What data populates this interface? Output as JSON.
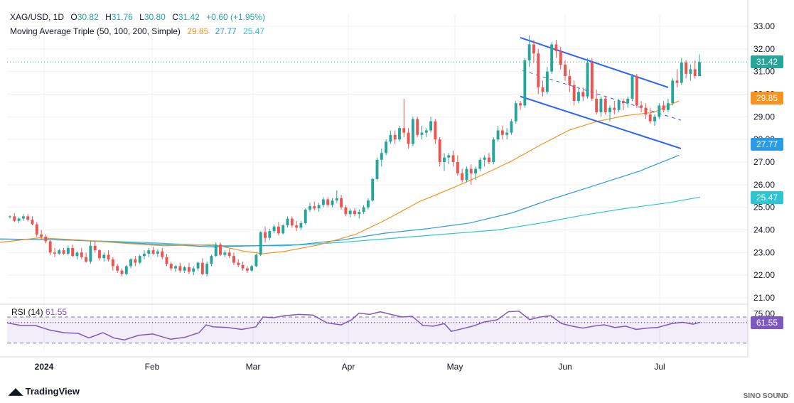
{
  "header": {
    "symbol": "XAG/USD, 1D",
    "ohlc": {
      "o_label": "O",
      "o": "30.82",
      "h_label": "H",
      "h": "31.76",
      "l_label": "L",
      "l": "30.80",
      "c_label": "C",
      "c": "31.42",
      "change": "+0.60 (+1.95%)"
    },
    "ma_title": "Moving Average Triple (50, 100, 200, Simple)",
    "ma_values": [
      "29.85",
      "27.77",
      "25.47"
    ]
  },
  "colors": {
    "up": "#26a69a",
    "down": "#ef5350",
    "ma50": "#f7931e",
    "ma100": "#2a9be6",
    "ma200": "#2bc5d4",
    "channel": "#2962ff",
    "rsi": "#7e57c2",
    "grid": "#eef0f3",
    "axis_text": "#131722"
  },
  "rsi": {
    "title": "RSI (14)",
    "value": "61.55",
    "level_upper": 70,
    "level_lower": 30,
    "tick": "75.00"
  },
  "price_tags": {
    "last": "31.42",
    "ma50": "29.85",
    "ma100": "27.77",
    "ma200": "25.47",
    "rsi": "61.55"
  },
  "branding": {
    "logo": "TradingView",
    "watermark": "SINO SOUND"
  },
  "chart_data": {
    "type": "candlestick",
    "y_ticks": [
      "33.00",
      "32.00",
      "31.00",
      "30.00",
      "29.00",
      "28.00",
      "27.00",
      "26.00",
      "25.00",
      "24.00",
      "23.00",
      "22.00",
      "21.00"
    ],
    "x_ticks": [
      "2024",
      "Feb",
      "Mar",
      "Apr",
      "May",
      "Jun",
      "Jul"
    ],
    "ylim": [
      20.6,
      33.4
    ],
    "last_price": 31.42,
    "candles": [
      [
        24.58,
        24.65,
        24.5,
        24.6
      ],
      [
        24.6,
        24.75,
        24.35,
        24.4
      ],
      [
        24.4,
        24.55,
        24.3,
        24.5
      ],
      [
        24.5,
        24.7,
        24.4,
        24.6
      ],
      [
        24.6,
        24.7,
        24.38,
        24.45
      ],
      [
        24.45,
        24.6,
        24.2,
        24.25
      ],
      [
        24.25,
        24.35,
        23.7,
        23.8
      ],
      [
        23.8,
        24.0,
        23.55,
        23.7
      ],
      [
        23.7,
        23.8,
        23.4,
        23.5
      ],
      [
        23.5,
        23.55,
        22.9,
        23.0
      ],
      [
        23.0,
        23.2,
        22.8,
        22.95
      ],
      [
        22.95,
        23.15,
        22.9,
        23.1
      ],
      [
        23.1,
        23.2,
        22.9,
        22.95
      ],
      [
        22.95,
        23.3,
        22.9,
        23.2
      ],
      [
        23.2,
        23.35,
        22.8,
        22.85
      ],
      [
        22.85,
        23.05,
        22.7,
        23.0
      ],
      [
        23.0,
        23.2,
        22.7,
        22.8
      ],
      [
        22.8,
        23.0,
        22.55,
        22.6
      ],
      [
        22.6,
        23.5,
        22.5,
        23.3
      ],
      [
        23.3,
        23.5,
        23.0,
        23.1
      ],
      [
        23.1,
        23.15,
        22.65,
        22.75
      ],
      [
        22.75,
        23.0,
        22.6,
        22.9
      ],
      [
        22.9,
        23.1,
        22.6,
        22.7
      ],
      [
        22.7,
        22.8,
        22.2,
        22.4
      ],
      [
        22.4,
        22.5,
        22.1,
        22.2
      ],
      [
        22.2,
        22.3,
        21.95,
        22.05
      ],
      [
        22.05,
        22.45,
        22.0,
        22.4
      ],
      [
        22.4,
        22.75,
        22.3,
        22.7
      ],
      [
        22.7,
        22.85,
        22.4,
        22.55
      ],
      [
        22.55,
        22.9,
        22.5,
        22.85
      ],
      [
        22.85,
        23.1,
        22.7,
        22.95
      ],
      [
        22.95,
        23.2,
        22.8,
        23.1
      ],
      [
        23.1,
        23.25,
        22.9,
        22.95
      ],
      [
        22.95,
        23.15,
        22.8,
        23.05
      ],
      [
        23.05,
        23.2,
        22.7,
        22.8
      ],
      [
        22.8,
        22.95,
        22.4,
        22.5
      ],
      [
        22.5,
        22.6,
        22.2,
        22.3
      ],
      [
        22.3,
        22.45,
        22.15,
        22.4
      ],
      [
        22.4,
        22.55,
        22.1,
        22.2
      ],
      [
        22.2,
        22.4,
        22.1,
        22.35
      ],
      [
        22.35,
        22.55,
        22.05,
        22.15
      ],
      [
        22.15,
        22.4,
        22.0,
        22.3
      ],
      [
        22.3,
        22.6,
        22.2,
        22.55
      ],
      [
        22.55,
        22.75,
        22.0,
        22.05
      ],
      [
        22.05,
        22.6,
        21.95,
        22.5
      ],
      [
        22.5,
        22.9,
        22.4,
        22.85
      ],
      [
        22.85,
        23.45,
        22.8,
        23.35
      ],
      [
        23.35,
        23.45,
        22.85,
        22.9
      ],
      [
        22.9,
        23.1,
        22.8,
        23.0
      ],
      [
        23.0,
        23.15,
        22.75,
        22.85
      ],
      [
        22.85,
        23.0,
        22.45,
        22.55
      ],
      [
        22.55,
        22.7,
        22.35,
        22.45
      ],
      [
        22.45,
        22.6,
        22.2,
        22.3
      ],
      [
        22.3,
        22.4,
        22.1,
        22.2
      ],
      [
        22.2,
        22.45,
        22.15,
        22.4
      ],
      [
        22.4,
        22.95,
        22.35,
        22.9
      ],
      [
        22.9,
        23.95,
        22.85,
        23.9
      ],
      [
        23.9,
        24.15,
        23.45,
        23.65
      ],
      [
        23.65,
        24.05,
        23.55,
        23.95
      ],
      [
        23.95,
        24.25,
        23.85,
        24.15
      ],
      [
        24.15,
        24.35,
        23.75,
        23.85
      ],
      [
        23.85,
        24.25,
        23.8,
        24.2
      ],
      [
        24.2,
        24.6,
        24.1,
        24.5
      ],
      [
        24.5,
        24.6,
        24.1,
        24.2
      ],
      [
        24.2,
        24.4,
        23.95,
        24.1
      ],
      [
        24.1,
        24.4,
        24.0,
        24.3
      ],
      [
        24.3,
        24.95,
        24.25,
        24.9
      ],
      [
        24.9,
        25.2,
        24.8,
        25.05
      ],
      [
        25.05,
        25.25,
        24.85,
        24.95
      ],
      [
        24.95,
        25.2,
        24.8,
        25.1
      ],
      [
        25.1,
        25.45,
        25.0,
        25.35
      ],
      [
        25.35,
        25.45,
        25.0,
        25.1
      ],
      [
        25.1,
        25.4,
        25.0,
        25.3
      ],
      [
        25.3,
        25.75,
        25.2,
        25.4
      ],
      [
        25.4,
        25.55,
        24.9,
        25.0
      ],
      [
        25.0,
        25.1,
        24.6,
        24.7
      ],
      [
        24.7,
        24.95,
        24.55,
        24.85
      ],
      [
        24.85,
        24.95,
        24.6,
        24.7
      ],
      [
        24.7,
        24.9,
        24.5,
        24.8
      ],
      [
        24.8,
        25.1,
        24.7,
        25.0
      ],
      [
        25.0,
        25.4,
        24.9,
        25.3
      ],
      [
        25.3,
        26.3,
        25.25,
        26.25
      ],
      [
        26.25,
        27.2,
        26.2,
        27.1
      ],
      [
        27.1,
        27.6,
        26.8,
        27.4
      ],
      [
        27.4,
        28.0,
        27.3,
        27.9
      ],
      [
        27.9,
        28.4,
        27.8,
        28.2
      ],
      [
        28.2,
        28.4,
        27.8,
        28.0
      ],
      [
        28.0,
        28.6,
        27.9,
        28.5
      ],
      [
        28.5,
        29.8,
        28.1,
        28.3
      ],
      [
        28.3,
        28.5,
        27.6,
        27.8
      ],
      [
        27.8,
        29.0,
        27.7,
        28.9
      ],
      [
        28.9,
        29.0,
        28.1,
        28.2
      ],
      [
        28.2,
        28.6,
        28.0,
        28.3
      ],
      [
        28.3,
        28.5,
        28.1,
        28.4
      ],
      [
        28.4,
        29.0,
        28.3,
        28.8
      ],
      [
        28.8,
        28.9,
        27.8,
        28.0
      ],
      [
        28.0,
        28.1,
        26.8,
        27.0
      ],
      [
        27.0,
        27.4,
        26.6,
        27.2
      ],
      [
        27.2,
        27.4,
        26.9,
        27.3
      ],
      [
        27.3,
        27.5,
        26.8,
        27.0
      ],
      [
        27.0,
        27.3,
        26.4,
        26.5
      ],
      [
        26.5,
        26.7,
        26.1,
        26.2
      ],
      [
        26.2,
        26.8,
        26.1,
        26.7
      ],
      [
        26.7,
        26.9,
        26.0,
        26.5
      ],
      [
        26.5,
        26.8,
        26.2,
        26.7
      ],
      [
        26.7,
        27.2,
        26.6,
        27.1
      ],
      [
        27.1,
        27.3,
        26.8,
        27.2
      ],
      [
        27.2,
        27.4,
        26.9,
        27.0
      ],
      [
        27.0,
        28.1,
        26.9,
        28.0
      ],
      [
        28.0,
        28.6,
        27.9,
        28.4
      ],
      [
        28.4,
        28.6,
        28.0,
        28.2
      ],
      [
        28.2,
        28.5,
        28.0,
        28.3
      ],
      [
        28.3,
        28.9,
        28.2,
        28.8
      ],
      [
        28.8,
        29.7,
        28.7,
        29.6
      ],
      [
        29.6,
        29.7,
        29.3,
        29.5
      ],
      [
        29.5,
        31.6,
        29.4,
        31.5
      ],
      [
        31.5,
        32.6,
        31.2,
        32.2
      ],
      [
        32.2,
        32.4,
        31.4,
        31.8
      ],
      [
        31.8,
        32.0,
        30.0,
        30.3
      ],
      [
        30.3,
        30.6,
        29.9,
        30.1
      ],
      [
        30.1,
        31.2,
        30.0,
        31.0
      ],
      [
        31.0,
        32.3,
        30.9,
        32.2
      ],
      [
        32.2,
        32.4,
        31.6,
        31.9
      ],
      [
        31.9,
        32.1,
        31.1,
        31.3
      ],
      [
        31.3,
        31.5,
        30.6,
        30.8
      ],
      [
        30.8,
        31.1,
        30.1,
        30.4
      ],
      [
        30.4,
        30.6,
        29.5,
        29.7
      ],
      [
        29.7,
        30.3,
        29.6,
        30.1
      ],
      [
        30.1,
        30.3,
        29.7,
        29.9
      ],
      [
        29.9,
        31.6,
        29.8,
        31.4
      ],
      [
        31.4,
        31.6,
        29.7,
        29.8
      ],
      [
        29.8,
        30.2,
        29.1,
        29.2
      ],
      [
        29.2,
        29.9,
        29.0,
        29.8
      ],
      [
        29.8,
        29.9,
        29.1,
        29.2
      ],
      [
        29.2,
        29.5,
        28.8,
        29.4
      ],
      [
        29.4,
        29.7,
        29.1,
        29.3
      ],
      [
        29.3,
        29.8,
        29.2,
        29.7
      ],
      [
        29.7,
        29.8,
        29.3,
        29.6
      ],
      [
        29.6,
        29.9,
        29.4,
        29.8
      ],
      [
        29.8,
        30.9,
        29.7,
        30.8
      ],
      [
        30.8,
        30.9,
        29.4,
        29.5
      ],
      [
        29.5,
        29.7,
        29.2,
        29.4
      ],
      [
        29.4,
        29.6,
        28.9,
        29.1
      ],
      [
        29.1,
        29.4,
        28.7,
        28.8
      ],
      [
        28.8,
        29.1,
        28.6,
        29.0
      ],
      [
        29.0,
        29.6,
        28.9,
        29.5
      ],
      [
        29.5,
        29.7,
        29.2,
        29.3
      ],
      [
        29.3,
        29.8,
        29.2,
        29.6
      ],
      [
        29.6,
        30.7,
        29.5,
        30.6
      ],
      [
        30.6,
        31.1,
        30.3,
        30.5
      ],
      [
        30.5,
        31.6,
        30.4,
        31.4
      ],
      [
        31.4,
        31.5,
        30.7,
        30.9
      ],
      [
        30.9,
        31.3,
        30.6,
        31.1
      ],
      [
        31.1,
        31.5,
        30.7,
        30.8
      ],
      [
        30.8,
        31.76,
        30.8,
        31.42
      ]
    ],
    "ma50": [
      [
        0,
        23.45
      ],
      [
        55,
        23.65
      ],
      [
        115,
        23.55
      ],
      [
        180,
        23.4
      ],
      [
        230,
        23.3
      ],
      [
        300,
        23.35
      ],
      [
        345,
        23.05
      ],
      [
        370,
        22.95
      ],
      [
        400,
        23.05
      ],
      [
        450,
        23.35
      ],
      [
        500,
        23.8
      ],
      [
        540,
        24.4
      ],
      [
        590,
        25.25
      ],
      [
        640,
        25.9
      ],
      [
        680,
        26.45
      ],
      [
        720,
        27.05
      ],
      [
        760,
        27.75
      ],
      [
        800,
        28.4
      ],
      [
        840,
        28.8
      ],
      [
        880,
        29.05
      ],
      [
        920,
        29.2
      ],
      [
        955,
        29.7
      ]
    ],
    "ma100": [
      [
        0,
        23.6
      ],
      [
        100,
        23.55
      ],
      [
        200,
        23.4
      ],
      [
        300,
        23.25
      ],
      [
        360,
        23.3
      ],
      [
        420,
        23.35
      ],
      [
        480,
        23.55
      ],
      [
        540,
        23.85
      ],
      [
        600,
        24.05
      ],
      [
        660,
        24.3
      ],
      [
        720,
        24.75
      ],
      [
        770,
        25.3
      ],
      [
        830,
        25.9
      ],
      [
        900,
        26.6
      ],
      [
        955,
        27.3
      ]
    ],
    "ma200": [
      [
        0,
        23.6
      ],
      [
        100,
        23.55
      ],
      [
        200,
        23.45
      ],
      [
        300,
        23.3
      ],
      [
        400,
        23.3
      ],
      [
        480,
        23.45
      ],
      [
        540,
        23.6
      ],
      [
        620,
        23.8
      ],
      [
        700,
        24.0
      ],
      [
        760,
        24.3
      ],
      [
        820,
        24.65
      ],
      [
        880,
        24.95
      ],
      [
        940,
        25.2
      ],
      [
        985,
        25.45
      ]
    ],
    "channel": {
      "upper": [
        [
          732,
          32.5
        ],
        [
          940,
          30.3
        ]
      ],
      "lower": [
        [
          732,
          29.9
        ],
        [
          958,
          27.6
        ]
      ],
      "mid": [
        [
          735,
          31.05
        ],
        [
          958,
          28.85
        ]
      ]
    },
    "rsi_ylim": [
      20,
      82
    ],
    "rsi": [
      [
        10,
        61
      ],
      [
        30,
        57
      ],
      [
        50,
        57
      ],
      [
        70,
        50
      ],
      [
        90,
        46
      ],
      [
        110,
        45
      ],
      [
        125,
        38
      ],
      [
        145,
        46
      ],
      [
        160,
        38
      ],
      [
        175,
        35
      ],
      [
        195,
        42
      ],
      [
        215,
        44
      ],
      [
        240,
        36
      ],
      [
        260,
        39
      ],
      [
        280,
        46
      ],
      [
        290,
        58
      ],
      [
        300,
        55
      ],
      [
        320,
        54
      ],
      [
        340,
        51
      ],
      [
        360,
        55
      ],
      [
        370,
        70
      ],
      [
        385,
        69
      ],
      [
        400,
        72
      ],
      [
        420,
        74
      ],
      [
        440,
        73
      ],
      [
        460,
        61
      ],
      [
        480,
        58
      ],
      [
        495,
        66
      ],
      [
        505,
        76
      ],
      [
        520,
        74
      ],
      [
        535,
        78
      ],
      [
        550,
        74
      ],
      [
        565,
        70
      ],
      [
        580,
        71
      ],
      [
        595,
        57
      ],
      [
        610,
        56
      ],
      [
        625,
        60
      ],
      [
        635,
        48
      ],
      [
        650,
        52
      ],
      [
        665,
        56
      ],
      [
        680,
        62
      ],
      [
        700,
        66
      ],
      [
        715,
        78
      ],
      [
        730,
        79
      ],
      [
        745,
        66
      ],
      [
        760,
        70
      ],
      [
        775,
        72
      ],
      [
        790,
        60
      ],
      [
        805,
        56
      ],
      [
        820,
        53
      ],
      [
        835,
        56
      ],
      [
        850,
        58
      ],
      [
        865,
        54
      ],
      [
        880,
        56
      ],
      [
        895,
        51
      ],
      [
        910,
        53
      ],
      [
        925,
        54
      ],
      [
        945,
        60
      ],
      [
        960,
        62
      ],
      [
        975,
        59
      ],
      [
        985,
        62
      ]
    ]
  }
}
